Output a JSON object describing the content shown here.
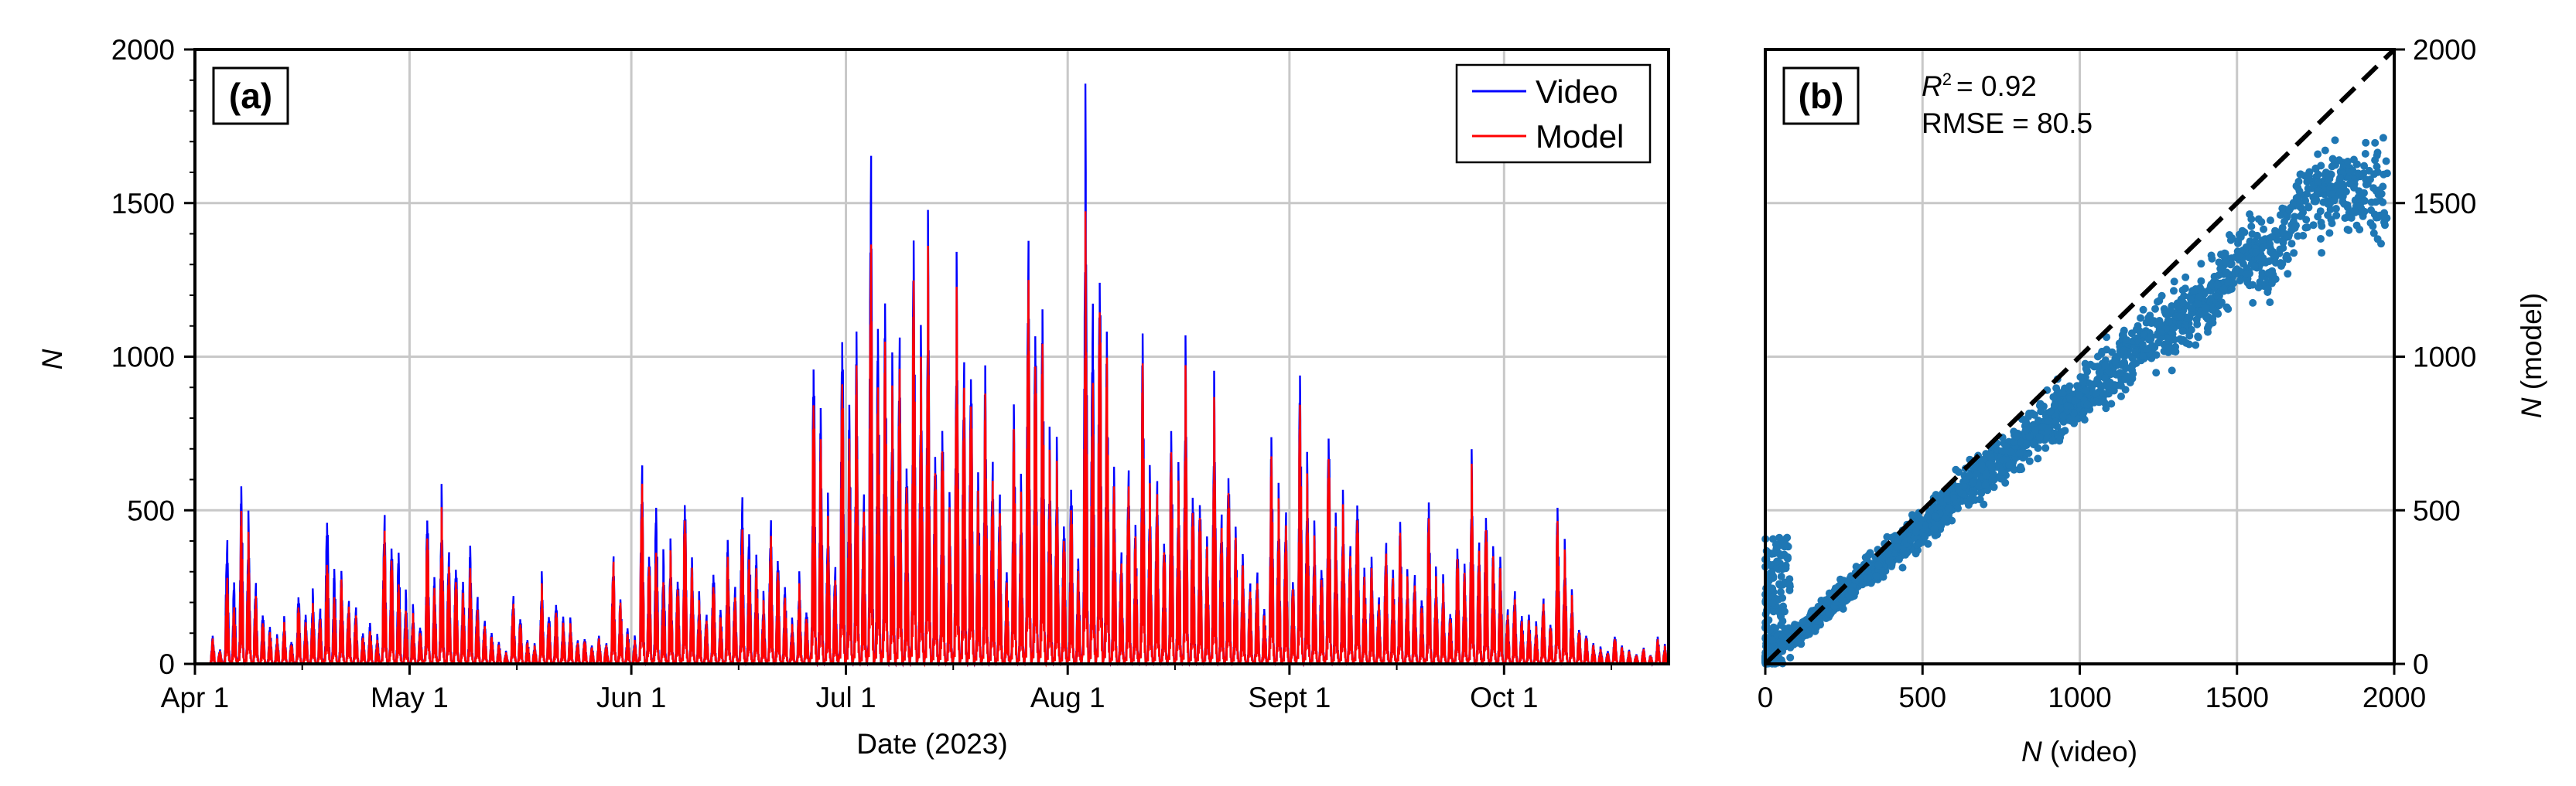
{
  "chart_data": [
    {
      "type": "line",
      "panel_label": "(a)",
      "xlabel": "Date (2023)",
      "ylabel": "N",
      "x_range": [
        "2023-04-01",
        "2023-10-24"
      ],
      "ylim": [
        0,
        2000
      ],
      "xtick_dates": [
        "2023-04-01",
        "2023-05-01",
        "2023-06-01",
        "2023-07-01",
        "2023-08-01",
        "2023-09-01",
        "2023-10-01"
      ],
      "xtick_labels": [
        "Apr 1",
        "May 1",
        "Jun 1",
        "Jul 1",
        "Aug 1",
        "Sept 1",
        "Oct 1"
      ],
      "yticks": [
        0,
        500,
        1000,
        1500,
        2000
      ],
      "ytick_labels": [
        "0",
        "500",
        "1000",
        "1500",
        "2000"
      ],
      "grid": true,
      "legend": "top-right",
      "series": [
        {
          "name": "Video",
          "color": "#0000ff"
        },
        {
          "name": "Model",
          "color": "#ff0000"
        }
      ],
      "daily_peaks": {
        "dates": [
          "2023-04-03",
          "2023-04-05",
          "2023-04-07",
          "2023-04-09",
          "2023-04-11",
          "2023-04-13",
          "2023-04-15",
          "2023-04-17",
          "2023-04-19",
          "2023-04-21",
          "2023-04-23",
          "2023-04-25",
          "2023-04-27",
          "2023-04-29",
          "2023-05-01",
          "2023-05-03",
          "2023-05-05",
          "2023-05-07",
          "2023-05-09",
          "2023-05-11",
          "2023-05-13",
          "2023-05-15",
          "2023-05-17",
          "2023-05-19",
          "2023-05-21",
          "2023-05-23",
          "2023-05-25",
          "2023-05-27",
          "2023-05-29",
          "2023-05-31",
          "2023-06-02",
          "2023-06-04",
          "2023-06-06",
          "2023-06-08",
          "2023-06-10",
          "2023-06-12",
          "2023-06-14",
          "2023-06-16",
          "2023-06-18",
          "2023-06-20",
          "2023-06-22",
          "2023-06-24",
          "2023-06-26",
          "2023-06-28",
          "2023-06-30",
          "2023-07-02",
          "2023-07-04",
          "2023-07-06",
          "2023-07-08",
          "2023-07-10",
          "2023-07-12",
          "2023-07-14",
          "2023-07-16",
          "2023-07-18",
          "2023-07-20",
          "2023-07-22",
          "2023-07-24",
          "2023-07-26",
          "2023-07-28",
          "2023-07-30",
          "2023-08-01",
          "2023-08-03",
          "2023-08-05",
          "2023-08-07",
          "2023-08-09",
          "2023-08-11",
          "2023-08-13",
          "2023-08-15",
          "2023-08-17",
          "2023-08-19",
          "2023-08-21",
          "2023-08-23",
          "2023-08-25",
          "2023-08-27",
          "2023-08-29",
          "2023-08-31",
          "2023-09-02",
          "2023-09-04",
          "2023-09-06",
          "2023-09-08",
          "2023-09-10",
          "2023-09-12",
          "2023-09-14",
          "2023-09-16",
          "2023-09-18",
          "2023-09-20",
          "2023-09-22",
          "2023-09-24",
          "2023-09-26",
          "2023-09-28",
          "2023-09-30",
          "2023-10-02",
          "2023-10-04",
          "2023-10-06",
          "2023-10-08",
          "2023-10-10",
          "2023-10-12",
          "2023-10-14",
          "2023-10-16",
          "2023-10-18",
          "2023-10-20",
          "2023-10-22"
        ],
        "video": [
          100,
          460,
          650,
          310,
          140,
          160,
          260,
          260,
          570,
          330,
          210,
          150,
          570,
          420,
          200,
          560,
          620,
          380,
          420,
          160,
          80,
          260,
          90,
          310,
          230,
          160,
          100,
          100,
          400,
          130,
          760,
          590,
          420,
          620,
          250,
          360,
          440,
          620,
          400,
          550,
          290,
          310,
          1150,
          590,
          1300,
          1180,
          1890,
          1320,
          1250,
          1600,
          1520,
          910,
          1420,
          1150,
          1060,
          630,
          950,
          1620,
          1340,
          760,
          680,
          2000,
          1540,
          700,
          720,
          1210,
          700,
          880,
          1100,
          620,
          1010,
          750,
          390,
          340,
          830,
          580,
          1090,
          480,
          880,
          600,
          640,
          380,
          450,
          520,
          340,
          610,
          300,
          450,
          740,
          590,
          380,
          270,
          180,
          250,
          590,
          250,
          110,
          60,
          110,
          50,
          60,
          100
        ],
        "model": [
          90,
          320,
          560,
          260,
          120,
          140,
          220,
          210,
          400,
          300,
          180,
          120,
          510,
          300,
          170,
          490,
          540,
          330,
          340,
          140,
          70,
          230,
          80,
          270,
          200,
          140,
          90,
          90,
          380,
          110,
          690,
          420,
          380,
          560,
          220,
          310,
          380,
          500,
          350,
          490,
          250,
          270,
          1010,
          510,
          1130,
          1060,
          1560,
          1180,
          1130,
          1450,
          1400,
          830,
          1300,
          1040,
          960,
          560,
          860,
          1470,
          1210,
          680,
          600,
          1560,
          1420,
          630,
          660,
          1100,
          650,
          800,
          1000,
          570,
          920,
          690,
          350,
          300,
          760,
          530,
          980,
          430,
          800,
          550,
          580,
          340,
          410,
          480,
          300,
          550,
          270,
          410,
          690,
          540,
          340,
          240,
          160,
          230,
          540,
          230,
          100,
          50,
          100,
          45,
          55,
          90
        ]
      }
    },
    {
      "type": "scatter",
      "panel_label": "(b)",
      "xlabel": "N (video)",
      "ylabel": "N (model)",
      "xlim": [
        0,
        2000
      ],
      "ylim": [
        0,
        2000
      ],
      "xticks": [
        0,
        500,
        1000,
        1500,
        2000
      ],
      "xtick_labels": [
        "0",
        "500",
        "1000",
        "1500",
        "2000"
      ],
      "yticks": [
        0,
        500,
        1000,
        1500,
        2000
      ],
      "ytick_labels": [
        "0",
        "500",
        "1000",
        "1500",
        "2000"
      ],
      "grid": true,
      "reference_line": "1:1",
      "r2_label": "R",
      "r2_value": "= 0.92",
      "rmse_text": "RMSE = 80.5",
      "point_color": "#1f77b4",
      "sample_points": {
        "x": [
          50,
          120,
          180,
          240,
          300,
          360,
          420,
          480,
          540,
          600,
          660,
          720,
          780,
          840,
          900,
          960,
          1020,
          1080,
          1140,
          1200,
          1260,
          1320,
          1400,
          1480,
          1560,
          1620,
          1700,
          1760,
          1820,
          1900,
          1960
        ],
        "y": [
          60,
          110,
          170,
          220,
          280,
          320,
          380,
          430,
          480,
          540,
          590,
          640,
          690,
          740,
          790,
          840,
          890,
          930,
          980,
          1040,
          1080,
          1130,
          1160,
          1300,
          1340,
          1330,
          1500,
          1540,
          1560,
          1530,
          1530
        ]
      }
    }
  ]
}
